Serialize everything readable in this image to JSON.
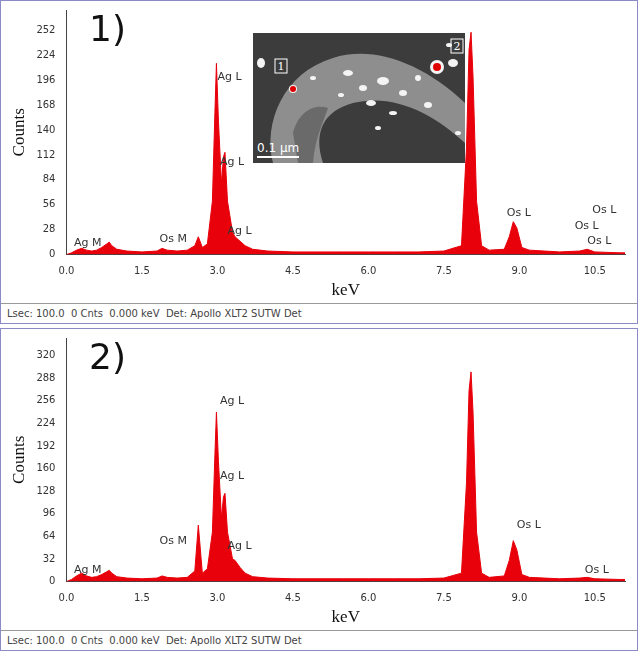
{
  "chart_data": [
    {
      "type": "line",
      "title": "1)",
      "x_label": "keV",
      "y_label": "Counts",
      "footer": "Lsec: 100.0  0 Cnts  0.000 keV  Det: Apollo XLT2 SUTW Det",
      "color": "#e8000b",
      "grid": false,
      "x": [
        0,
        0.1,
        0.2,
        0.3,
        0.4,
        0.5,
        0.6,
        0.7,
        0.8,
        0.85,
        0.9,
        1.0,
        1.2,
        1.5,
        1.8,
        1.9,
        2.0,
        2.2,
        2.4,
        2.55,
        2.62,
        2.7,
        2.8,
        2.9,
        2.95,
        2.98,
        3.02,
        3.08,
        3.12,
        3.15,
        3.2,
        3.3,
        3.35,
        3.45,
        3.55,
        3.7,
        4.0,
        4.5,
        5.0,
        5.5,
        6.0,
        6.5,
        7.0,
        7.5,
        7.85,
        7.95,
        8.0,
        8.04,
        8.08,
        8.15,
        8.25,
        8.4,
        8.7,
        8.8,
        8.88,
        8.95,
        9.05,
        9.2,
        9.5,
        9.8,
        10.2,
        10.35,
        10.5,
        11.0,
        11.1
      ],
      "values": [
        0,
        2,
        5,
        7,
        5,
        4,
        5,
        8,
        12,
        14,
        10,
        6,
        4,
        3,
        4,
        7,
        5,
        4,
        5,
        10,
        20,
        8,
        12,
        60,
        160,
        215,
        150,
        80,
        110,
        115,
        60,
        25,
        20,
        15,
        10,
        6,
        4,
        3,
        3,
        3,
        3,
        3,
        3,
        4,
        10,
        120,
        230,
        250,
        200,
        60,
        10,
        5,
        6,
        20,
        37,
        30,
        8,
        5,
        4,
        3,
        4,
        6,
        3,
        2,
        2
      ],
      "xlim": [
        0,
        11.1
      ],
      "ylim": [
        0,
        275
      ],
      "xticks": [
        {
          "value": 0,
          "label": "0.0"
        },
        1.5,
        {
          "value": 3,
          "label": "3.0"
        },
        4.5,
        {
          "value": 6,
          "label": "6.0"
        },
        7.5,
        {
          "value": 9,
          "label": "9.0"
        },
        10.5
      ],
      "yticks": [
        0,
        28,
        56,
        84,
        112,
        140,
        168,
        196,
        224,
        252
      ],
      "annotations": [
        {
          "text": "Ag M",
          "x": 0.15,
          "y": 13
        },
        {
          "text": "Os M",
          "x": 1.85,
          "y": 17
        },
        {
          "text": "Ag L",
          "x": 3.0,
          "y": 199
        },
        {
          "text": "Ag L",
          "x": 3.05,
          "y": 104
        },
        {
          "text": "Ag L",
          "x": 3.2,
          "y": 26
        },
        {
          "text": "Os L",
          "x": 8.75,
          "y": 47
        },
        {
          "text": "Os L",
          "x": 10.45,
          "y": 50
        },
        {
          "text": "Os L",
          "x": 10.1,
          "y": 32
        },
        {
          "text": "Os L",
          "x": 10.35,
          "y": 15
        }
      ],
      "inset": {
        "labels": [
          "1",
          "2"
        ],
        "scale_bar": "0.1 µm"
      }
    },
    {
      "type": "line",
      "title": "2)",
      "x_label": "keV",
      "y_label": "Counts",
      "footer": "Lsec: 100.0  0 Cnts  0.000 keV  Det: Apollo XLT2 SUTW Det",
      "color": "#e8000b",
      "grid": false,
      "x": [
        0,
        0.1,
        0.2,
        0.3,
        0.4,
        0.5,
        0.6,
        0.7,
        0.8,
        0.85,
        0.9,
        1.0,
        1.2,
        1.5,
        1.8,
        1.9,
        2.0,
        2.2,
        2.4,
        2.55,
        2.62,
        2.7,
        2.8,
        2.9,
        2.95,
        2.98,
        3.02,
        3.08,
        3.12,
        3.15,
        3.2,
        3.3,
        3.35,
        3.45,
        3.55,
        3.7,
        4.0,
        4.5,
        5.0,
        5.5,
        6.0,
        6.5,
        7.0,
        7.5,
        7.85,
        7.95,
        8.0,
        8.04,
        8.08,
        8.15,
        8.25,
        8.4,
        8.7,
        8.8,
        8.88,
        8.95,
        9.05,
        9.2,
        9.5,
        9.8,
        10.2,
        10.35,
        10.5,
        11.0,
        11.1
      ],
      "values": [
        0,
        3,
        8,
        12,
        8,
        6,
        7,
        10,
        14,
        16,
        12,
        7,
        5,
        4,
        5,
        8,
        6,
        5,
        6,
        15,
        80,
        12,
        18,
        70,
        180,
        240,
        170,
        90,
        120,
        125,
        70,
        32,
        30,
        20,
        12,
        7,
        5,
        4,
        4,
        4,
        4,
        4,
        4,
        5,
        12,
        140,
        270,
        297,
        240,
        70,
        12,
        6,
        8,
        30,
        58,
        45,
        10,
        6,
        5,
        4,
        5,
        6,
        4,
        3,
        3
      ],
      "xlim": [
        0,
        11.1
      ],
      "ylim": [
        0,
        345
      ],
      "xticks": [
        {
          "value": 0,
          "label": "0.0"
        },
        1.5,
        {
          "value": 3,
          "label": "3.0"
        },
        4.5,
        {
          "value": 6,
          "label": "6.0"
        },
        7.5,
        {
          "value": 9,
          "label": "9.0"
        },
        10.5
      ],
      "yticks": [
        0,
        32,
        64,
        96,
        128,
        160,
        192,
        224,
        256,
        288,
        320
      ],
      "annotations": [
        {
          "text": "Ag M",
          "x": 0.15,
          "y": 16
        },
        {
          "text": "Os M",
          "x": 1.85,
          "y": 57
        },
        {
          "text": "Ag L",
          "x": 3.05,
          "y": 256
        },
        {
          "text": "Ag L",
          "x": 3.05,
          "y": 149
        },
        {
          "text": "Ag L",
          "x": 3.2,
          "y": 50
        },
        {
          "text": "Os L",
          "x": 8.95,
          "y": 80
        },
        {
          "text": "Os L",
          "x": 10.3,
          "y": 16
        }
      ]
    }
  ]
}
